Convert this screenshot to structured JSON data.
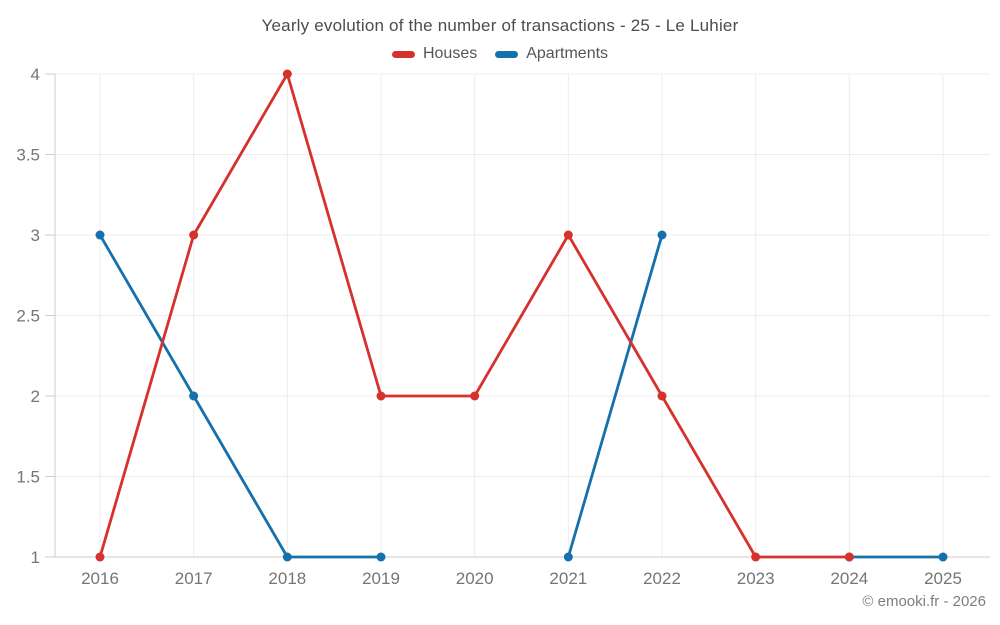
{
  "header": {
    "title": "Yearly evolution of the number of transactions - 25 - Le Luhier"
  },
  "legend": [
    {
      "id": "houses",
      "label": "Houses",
      "color": "#d6312d"
    },
    {
      "id": "apartments",
      "label": "Apartments",
      "color": "#1471ac"
    }
  ],
  "footer": {
    "copyright": "© emooki.fr - 2026"
  },
  "chart_data": {
    "type": "line",
    "title": "Yearly evolution of the number of transactions - 25 - Le Luhier",
    "x": [
      2016,
      2017,
      2018,
      2019,
      2020,
      2021,
      2022,
      2023,
      2024,
      2025
    ],
    "series": [
      {
        "name": "Apartments",
        "color": "#1471ac",
        "values": [
          3,
          2,
          1,
          1,
          null,
          1,
          3,
          null,
          1,
          1
        ]
      },
      {
        "name": "Houses",
        "color": "#d6312d",
        "values": [
          1,
          3,
          4,
          2,
          2,
          3,
          2,
          1,
          1,
          null
        ]
      }
    ],
    "ylim": [
      1,
      4
    ],
    "yticks": [
      1,
      1.5,
      2,
      2.5,
      3,
      3.5,
      4
    ],
    "ytick_labels": [
      "1",
      "1.5",
      "2",
      "2.5",
      "3",
      "3.5",
      "4"
    ],
    "grid": true,
    "legend_position": "top",
    "xlabel": "",
    "ylabel": "",
    "grid_color": "#ececec",
    "axis_color": "#cccccc",
    "tick_label_color": "#757575",
    "marker_radius": 4.5,
    "line_width": 2.8
  }
}
